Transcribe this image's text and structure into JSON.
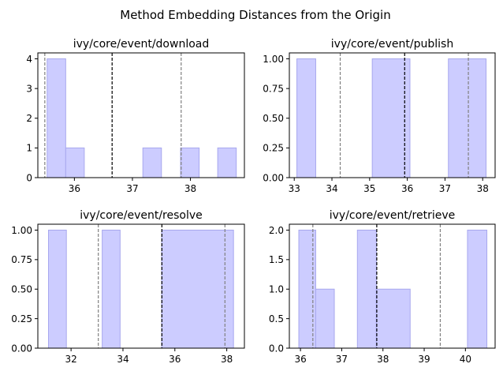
{
  "figure": {
    "suptitle": "Method Embedding Distances from the Origin"
  },
  "colors": {
    "bar_fill": "#ccccff",
    "bar_edge": "#a8a8ee",
    "mean_line": "#000000",
    "std_line": "#808080"
  },
  "chart_data": [
    {
      "type": "bar",
      "title": "ivy/core/event/download",
      "xlim": [
        35.37,
        38.93
      ],
      "ylim": [
        0,
        4.2
      ],
      "xticks": [
        36,
        37,
        38
      ],
      "yticks": [
        0,
        1,
        2,
        3,
        4
      ],
      "ytick_labels": [
        "0",
        "1",
        "2",
        "3",
        "4"
      ],
      "bins": [
        {
          "x0": 35.53,
          "x1": 35.85,
          "count": 4
        },
        {
          "x0": 35.85,
          "x1": 36.17,
          "count": 1
        },
        {
          "x0": 37.18,
          "x1": 37.5,
          "count": 1
        },
        {
          "x0": 37.83,
          "x1": 38.15,
          "count": 1
        },
        {
          "x0": 38.47,
          "x1": 38.79,
          "count": 1
        }
      ],
      "mean_line": 36.65,
      "std_lines": [
        35.49,
        37.84
      ]
    },
    {
      "type": "bar",
      "title": "ivy/core/event/publish",
      "xlim": [
        32.87,
        38.33
      ],
      "ylim": [
        0,
        1.05
      ],
      "xticks": [
        33,
        34,
        35,
        36,
        37,
        38
      ],
      "yticks": [
        0,
        0.25,
        0.5,
        0.75,
        1.0
      ],
      "ytick_labels": [
        "0.00",
        "0.25",
        "0.50",
        "0.75",
        "1.00"
      ],
      "bins": [
        {
          "x0": 33.07,
          "x1": 33.57,
          "count": 1
        },
        {
          "x0": 35.07,
          "x1": 36.07,
          "count": 1
        },
        {
          "x0": 37.09,
          "x1": 38.09,
          "count": 1
        }
      ],
      "mean_line": 35.93,
      "std_lines": [
        34.22,
        37.62
      ]
    },
    {
      "type": "bar",
      "title": "ivy/core/event/resolve",
      "xlim": [
        30.72,
        38.68
      ],
      "ylim": [
        0,
        1.05
      ],
      "xticks": [
        32,
        34,
        36,
        38
      ],
      "yticks": [
        0,
        0.25,
        0.5,
        0.75,
        1.0
      ],
      "ytick_labels": [
        "0.00",
        "0.25",
        "0.50",
        "0.75",
        "1.00"
      ],
      "bins": [
        {
          "x0": 31.13,
          "x1": 31.82,
          "count": 1
        },
        {
          "x0": 33.2,
          "x1": 33.89,
          "count": 1
        },
        {
          "x0": 35.49,
          "x1": 38.26,
          "count": 1
        }
      ],
      "mean_line": 35.5,
      "std_lines": [
        33.05,
        37.93
      ]
    },
    {
      "type": "bar",
      "title": "ivy/core/event/retrieve",
      "xlim": [
        35.73,
        40.72
      ],
      "ylim": [
        0,
        2.1
      ],
      "xticks": [
        36,
        37,
        38,
        39,
        40
      ],
      "yticks": [
        0,
        0.5,
        1.0,
        1.5,
        2.0
      ],
      "ytick_labels": [
        "0.0",
        "0.5",
        "1.0",
        "1.5",
        "2.0"
      ],
      "bins": [
        {
          "x0": 35.96,
          "x1": 36.37,
          "count": 2
        },
        {
          "x0": 36.37,
          "x1": 36.82,
          "count": 1
        },
        {
          "x0": 37.38,
          "x1": 37.84,
          "count": 2
        },
        {
          "x0": 37.84,
          "x1": 38.66,
          "count": 1
        },
        {
          "x0": 40.05,
          "x1": 40.52,
          "count": 2
        }
      ],
      "mean_line": 37.85,
      "std_lines": [
        36.3,
        39.39
      ]
    }
  ]
}
